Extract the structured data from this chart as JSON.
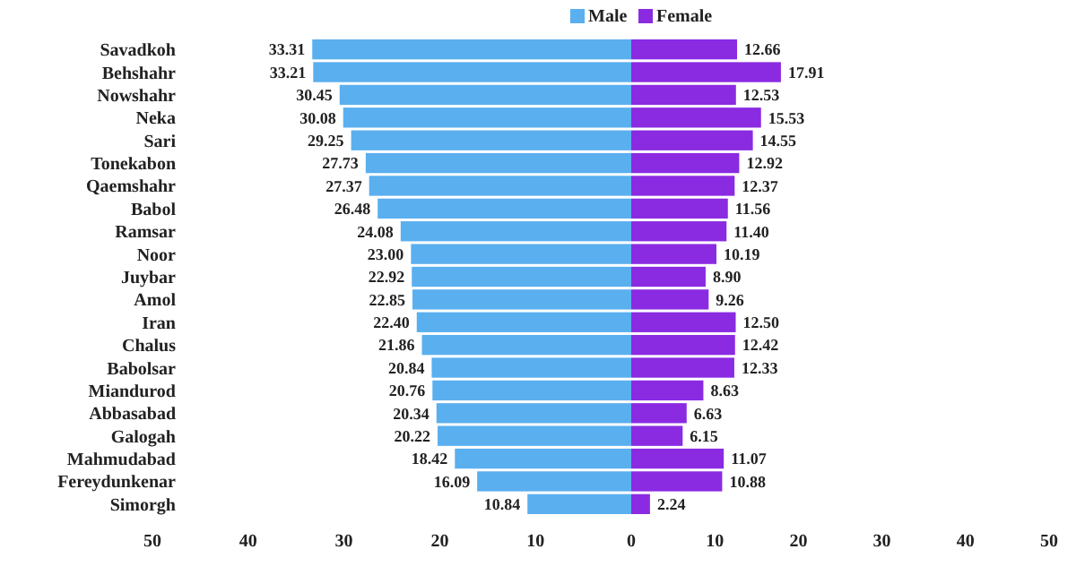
{
  "chart_data": [
    {
      "type": "bar",
      "orientation": "horizontal",
      "legend": "top",
      "categories": [
        "Savadkoh",
        "Behshahr",
        "Nowshahr",
        "Neka",
        "Sari",
        "Tonekabon",
        "Qaemshahr",
        "Babol",
        "Ramsar",
        "Noor",
        "Juybar",
        "Amol",
        "Iran",
        "Chalus",
        "Babolsar",
        "Miandurod",
        "Abbasabad",
        "Galogah",
        "Mahmudabad",
        "Fereydunkenar",
        "Simorgh"
      ],
      "series": [
        {
          "name": "Male",
          "color": "#5aafef",
          "values": [
            33.31,
            33.21,
            30.45,
            30.08,
            29.25,
            27.73,
            27.37,
            26.48,
            24.08,
            23.0,
            22.92,
            22.85,
            22.4,
            21.86,
            20.84,
            20.76,
            20.34,
            20.22,
            18.42,
            16.09,
            10.84
          ],
          "value_labels": [
            "33.31",
            "33.21",
            "30.45",
            "30.08",
            "29.25",
            "27.73",
            "27.37",
            "26.48",
            "24.08",
            "23.00",
            "22.92",
            "22.85",
            "22.40",
            "21.86",
            "20.84",
            "20.76",
            "20.34",
            "20.22",
            "18.42",
            "16.09",
            "10.84"
          ]
        }
      ],
      "xlim": [
        50,
        0
      ],
      "xticks": [
        50,
        40,
        30,
        20,
        10,
        0
      ]
    },
    {
      "type": "bar",
      "orientation": "horizontal",
      "legend": "top",
      "tick_labels": "x",
      "series": [
        {
          "name": "Female",
          "color": "#8a2be2",
          "values": [
            12.66,
            17.91,
            12.53,
            15.53,
            14.55,
            12.92,
            12.37,
            11.56,
            11.4,
            10.19,
            8.9,
            9.26,
            12.5,
            12.42,
            12.33,
            8.63,
            6.63,
            6.15,
            11.07,
            10.88,
            2.24
          ],
          "value_labels": [
            "12.66",
            "17.91",
            "12.53",
            "15.53",
            "14.55",
            "12.92",
            "12.37",
            "11.56",
            "11.40",
            "10.19",
            "8.90",
            "9.26",
            "12.50",
            "12.42",
            "12.33",
            "8.63",
            "6.63",
            "6.15",
            "11.07",
            "10.88",
            "2.24"
          ]
        }
      ],
      "xlim": [
        0,
        50
      ],
      "xticks": [
        10,
        20,
        30,
        40,
        50
      ]
    }
  ]
}
